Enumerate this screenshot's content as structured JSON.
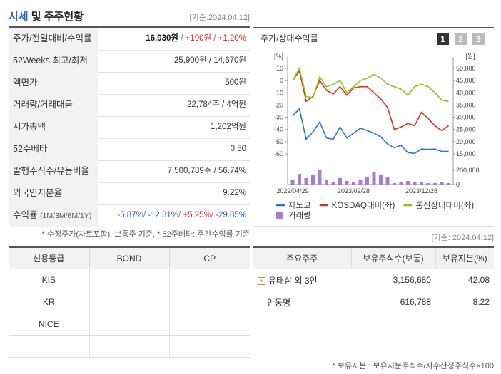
{
  "header": {
    "title_a": "시세",
    "title_b": "및 주주현황",
    "date": "[기준:2024.04.12]"
  },
  "summary": {
    "rows": [
      {
        "label": "주가/전일대비/수익률",
        "value": [
          "16,030원",
          " / ",
          "+190원",
          " / ",
          "+1.20%"
        ]
      },
      {
        "label": "52Weeks 최고/최저",
        "value": [
          "25,900원 / 14,670원"
        ]
      },
      {
        "label": "액면가",
        "value": [
          "500원"
        ]
      },
      {
        "label": "거래량/거래대금",
        "value": [
          "22,784주 / 4억원"
        ]
      },
      {
        "label": "시가총액",
        "value": [
          "1,202억원"
        ]
      },
      {
        "label": "52주베타",
        "value": [
          "0.50"
        ]
      },
      {
        "label": "발행주식수/유동비율",
        "value": [
          "7,500,789주 / 56.74%"
        ]
      },
      {
        "label": "외국인지분율",
        "value": [
          "9.22%"
        ]
      },
      {
        "label": "수익률",
        "sublabel": "(1M/3M/6M/1Y)",
        "value": [
          "-5.87%",
          "/ ",
          "-12.31%",
          "/ ",
          "+5.25%",
          "/ ",
          "-29.85%"
        ]
      }
    ],
    "note": "* 수정주가(차트포함), 보통주 기준, * 52주베타: 주간수익률 기준"
  },
  "chart_data": {
    "type": "line",
    "title": "주가/상대수익률",
    "tabs": [
      "1",
      "2",
      "3"
    ],
    "y_unit": "[%]",
    "y2_unit": "[원]",
    "categories": [
      "2022/04/29",
      null,
      null,
      null,
      null,
      null,
      null,
      null,
      null,
      "2023/02/28",
      null,
      null,
      null,
      null,
      null,
      null,
      null,
      null,
      null,
      "2023/12/28",
      null,
      null,
      null,
      null
    ],
    "ylim": [
      -60,
      10
    ],
    "yticks": [
      10,
      0,
      -10,
      -20,
      -30,
      -40,
      -50,
      -60
    ],
    "y2lim": [
      15000,
      50000
    ],
    "y2ticks": [
      {
        "value": 50000,
        "label": "50,000"
      },
      {
        "value": 45000,
        "label": "45,000"
      },
      {
        "value": 40000,
        "label": "40,000"
      },
      {
        "value": 35000,
        "label": "35,000"
      },
      {
        "value": 30000,
        "label": "30,000"
      },
      {
        "value": 25000,
        "label": "25,000"
      },
      {
        "value": 20000,
        "label": "20,000"
      },
      {
        "value": 15000,
        "label": "15,000"
      }
    ],
    "vol_lim": [
      0,
      200000
    ],
    "vol_ticks": [
      {
        "value": 200000,
        "label": "200,000"
      },
      0
    ],
    "series": [
      {
        "name": "제노코",
        "color": "#2f6fd6",
        "type": "line",
        "axis": "y2",
        "values": [
          30500,
          33500,
          21000,
          24000,
          28000,
          21500,
          21000,
          26000,
          21500,
          23500,
          25500,
          24500,
          23500,
          22000,
          19000,
          17500,
          18500,
          15500,
          15200,
          17000,
          16800,
          17000,
          16000,
          16030
        ]
      },
      {
        "name": "KOSDAQ대비(좌)",
        "color": "#d9321f",
        "type": "line",
        "axis": "y",
        "values": [
          0,
          8,
          -17,
          -13,
          0,
          -8,
          -11,
          -5,
          -12,
          -6,
          -5,
          -5,
          -10,
          -15,
          -22,
          -40,
          -38,
          -35,
          -37,
          -26,
          -31,
          -37,
          -41,
          -37
        ]
      },
      {
        "name": "통신장비대비(좌)",
        "color": "#8fc31f",
        "type": "line",
        "axis": "y",
        "values": [
          0,
          10,
          -13,
          -14,
          3,
          -5,
          -3,
          0,
          -10,
          -5,
          0,
          2,
          5,
          2,
          -3,
          -5,
          -7,
          -12,
          -5,
          -3,
          -5,
          -10,
          -16,
          -17
        ]
      },
      {
        "name": "거래량",
        "color": "#a97ad6",
        "type": "bar",
        "axis": "vol",
        "values": [
          60000,
          150000,
          90000,
          140000,
          200000,
          70000,
          30000,
          90000,
          50000,
          40000,
          60000,
          110000,
          170000,
          140000,
          100000,
          20000,
          30000,
          50000,
          40000,
          30000,
          20000,
          20000,
          40000,
          20000
        ]
      }
    ]
  },
  "credit": {
    "headers": [
      "신용등급",
      "BOND",
      "CP"
    ],
    "rows": [
      "KIS",
      "KR",
      "NICE"
    ]
  },
  "holders": {
    "date": "[기준: 2024.04.12]",
    "headers": [
      "주요주주",
      "보유주식수(보통)",
      "보유지분(%)"
    ],
    "rows": [
      [
        "유태삼 외 3인",
        "3,156,680",
        "42.08"
      ],
      [
        "안동명",
        "616,788",
        "8.22"
      ]
    ],
    "note": "* 보유지분 : 보유지분주식수/지수산정주식수×100"
  }
}
